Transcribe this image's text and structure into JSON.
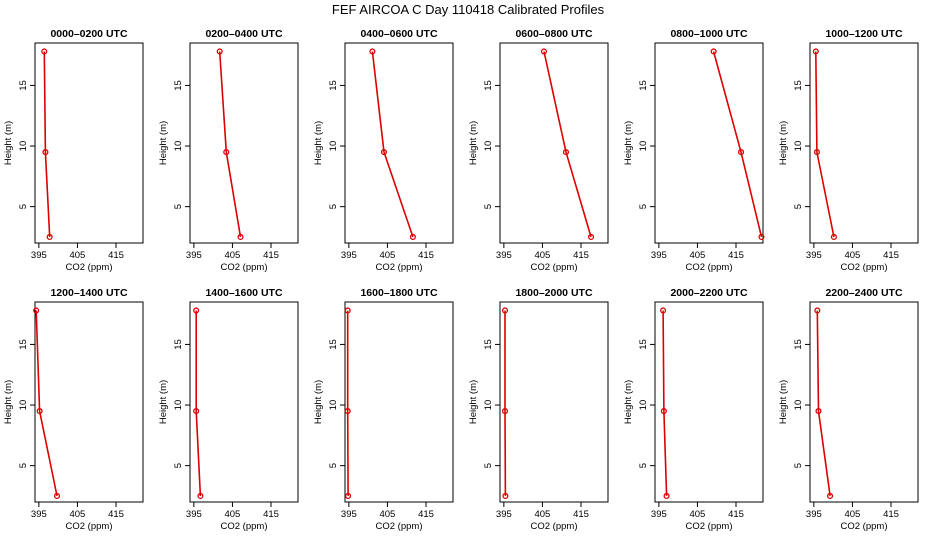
{
  "figure": {
    "title": "FEF AIRCOA C  Day 110418  Calibrated Profiles"
  },
  "chart_data": [
    {
      "type": "line",
      "title": "0000–0200 UTC",
      "xlabel": "CO2 (ppm)",
      "ylabel": "Height (m)",
      "xlim": [
        394,
        422
      ],
      "ylim": [
        2,
        18.5
      ],
      "xticks": [
        395,
        405,
        415
      ],
      "yticks": [
        5,
        10,
        15
      ],
      "x": [
        396.4,
        396.7,
        397.8
      ],
      "y": [
        17.8,
        9.5,
        2.5
      ]
    },
    {
      "type": "line",
      "title": "0200–0400 UTC",
      "xlabel": "CO2 (ppm)",
      "ylabel": "Height (m)",
      "xlim": [
        394,
        422
      ],
      "ylim": [
        2,
        18.5
      ],
      "xticks": [
        395,
        405,
        415
      ],
      "yticks": [
        5,
        10,
        15
      ],
      "x": [
        401.7,
        403.4,
        407.1
      ],
      "y": [
        17.8,
        9.5,
        2.5
      ]
    },
    {
      "type": "line",
      "title": "0400–0600 UTC",
      "xlabel": "CO2 (ppm)",
      "ylabel": "Height (m)",
      "xlim": [
        394,
        422
      ],
      "ylim": [
        2,
        18.5
      ],
      "xticks": [
        395,
        405,
        415
      ],
      "yticks": [
        5,
        10,
        15
      ],
      "x": [
        401.1,
        404.1,
        411.6
      ],
      "y": [
        17.8,
        9.5,
        2.5
      ]
    },
    {
      "type": "line",
      "title": "0600–0800 UTC",
      "xlabel": "CO2 (ppm)",
      "ylabel": "Height (m)",
      "xlim": [
        394,
        422
      ],
      "ylim": [
        2,
        18.5
      ],
      "xticks": [
        395,
        405,
        415
      ],
      "yticks": [
        5,
        10,
        15
      ],
      "x": [
        405.4,
        411.1,
        417.6
      ],
      "y": [
        17.8,
        9.5,
        2.5
      ]
    },
    {
      "type": "line",
      "title": "0800–1000 UTC",
      "xlabel": "CO2 (ppm)",
      "ylabel": "Height (m)",
      "xlim": [
        394,
        422
      ],
      "ylim": [
        2,
        18.5
      ],
      "xticks": [
        395,
        405,
        415
      ],
      "yticks": [
        5,
        10,
        15
      ],
      "x": [
        409.2,
        416.3,
        421.6
      ],
      "y": [
        17.8,
        9.5,
        2.5
      ]
    },
    {
      "type": "line",
      "title": "1000–1200 UTC",
      "xlabel": "CO2 (ppm)",
      "ylabel": "Height (m)",
      "xlim": [
        394,
        422
      ],
      "ylim": [
        2,
        18.5
      ],
      "xticks": [
        395,
        405,
        415
      ],
      "yticks": [
        5,
        10,
        15
      ],
      "x": [
        395.5,
        395.8,
        400.2
      ],
      "y": [
        17.8,
        9.5,
        2.5
      ]
    },
    {
      "type": "line",
      "title": "1200–1400 UTC",
      "xlabel": "CO2 (ppm)",
      "ylabel": "Height (m)",
      "xlim": [
        394,
        422
      ],
      "ylim": [
        2,
        18.5
      ],
      "xticks": [
        395,
        405,
        415
      ],
      "yticks": [
        5,
        10,
        15
      ],
      "x": [
        394.3,
        395.2,
        399.7
      ],
      "y": [
        17.8,
        9.5,
        2.5
      ]
    },
    {
      "type": "line",
      "title": "1400–1600 UTC",
      "xlabel": "CO2 (ppm)",
      "ylabel": "Height (m)",
      "xlim": [
        394,
        422
      ],
      "ylim": [
        2,
        18.5
      ],
      "xticks": [
        395,
        405,
        415
      ],
      "yticks": [
        5,
        10,
        15
      ],
      "x": [
        395.6,
        395.6,
        396.7
      ],
      "y": [
        17.8,
        9.5,
        2.5
      ]
    },
    {
      "type": "line",
      "title": "1600–1800 UTC",
      "xlabel": "CO2 (ppm)",
      "ylabel": "Height (m)",
      "xlim": [
        394,
        422
      ],
      "ylim": [
        2,
        18.5
      ],
      "xticks": [
        395,
        405,
        415
      ],
      "yticks": [
        5,
        10,
        15
      ],
      "x": [
        394.7,
        394.7,
        394.8
      ],
      "y": [
        17.8,
        9.5,
        2.5
      ]
    },
    {
      "type": "line",
      "title": "1800–2000 UTC",
      "xlabel": "CO2 (ppm)",
      "ylabel": "Height (m)",
      "xlim": [
        394,
        422
      ],
      "ylim": [
        2,
        18.5
      ],
      "xticks": [
        395,
        405,
        415
      ],
      "yticks": [
        5,
        10,
        15
      ],
      "x": [
        395.3,
        395.3,
        395.4
      ],
      "y": [
        17.8,
        9.5,
        2.5
      ]
    },
    {
      "type": "line",
      "title": "2000–2200 UTC",
      "xlabel": "CO2 (ppm)",
      "ylabel": "Height (m)",
      "xlim": [
        394,
        422
      ],
      "ylim": [
        2,
        18.5
      ],
      "xticks": [
        395,
        405,
        415
      ],
      "yticks": [
        5,
        10,
        15
      ],
      "x": [
        396.1,
        396.3,
        397.0
      ],
      "y": [
        17.8,
        9.5,
        2.5
      ]
    },
    {
      "type": "line",
      "title": "2200–2400 UTC",
      "xlabel": "CO2 (ppm)",
      "ylabel": "Height (m)",
      "xlim": [
        394,
        422
      ],
      "ylim": [
        2,
        18.5
      ],
      "xticks": [
        395,
        405,
        415
      ],
      "yticks": [
        5,
        10,
        15
      ],
      "x": [
        395.9,
        396.2,
        399.2
      ],
      "y": [
        17.8,
        9.5,
        2.5
      ]
    }
  ]
}
